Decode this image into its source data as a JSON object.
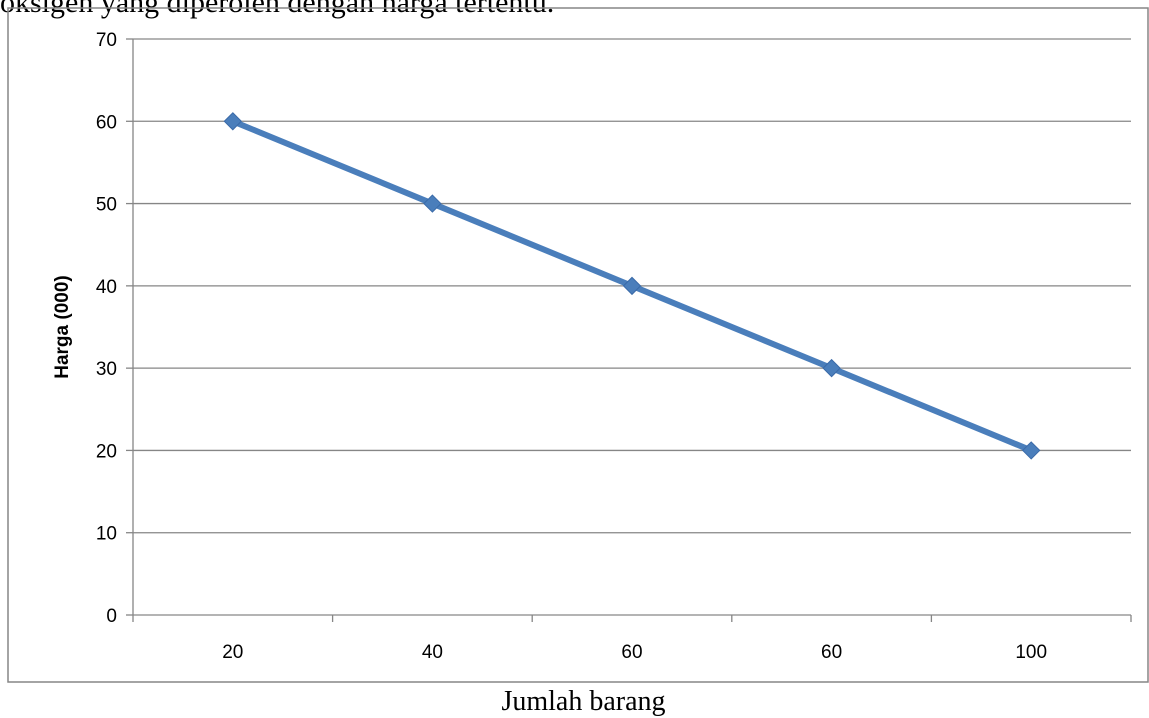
{
  "document": {
    "top_text": "oksigen yang diperoleh dengan harga tertentu.",
    "bottom_text": "Jumlah barang"
  },
  "colors": {
    "series": "#4a7ebb",
    "grid": "#868686",
    "frame": "#868686"
  },
  "chart_data": {
    "type": "line",
    "categories": [
      "20",
      "40",
      "60",
      "60",
      "100"
    ],
    "series": [
      {
        "values": [
          60,
          50,
          40,
          30,
          20
        ],
        "marker": "diamond"
      }
    ],
    "ylabel": "Harga (000)",
    "xlabel": "",
    "ylim": [
      0,
      70
    ],
    "yticks": [
      0,
      10,
      20,
      30,
      40,
      50,
      60,
      70
    ],
    "grid": true,
    "legend": "none"
  }
}
